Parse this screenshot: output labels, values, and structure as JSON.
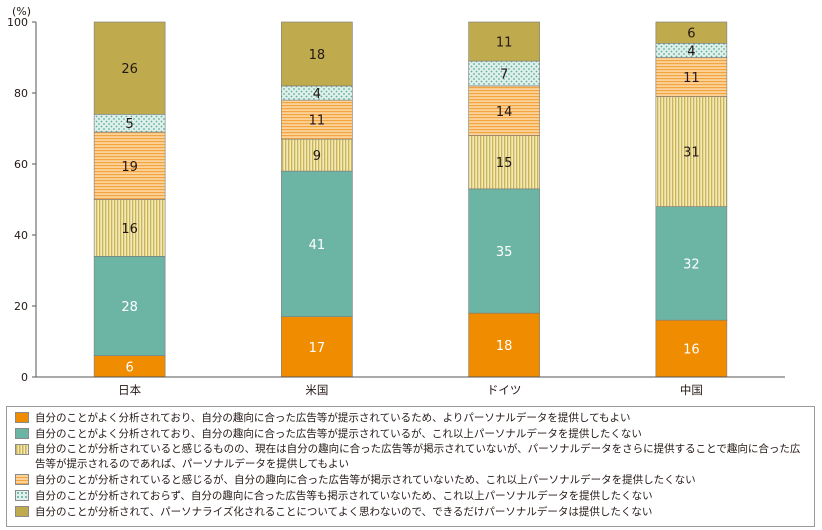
{
  "chart_data": {
    "type": "bar",
    "stacked": true,
    "unit_label": "(%)",
    "categories": [
      "日本",
      "米国",
      "ドイツ",
      "中国"
    ],
    "ylim": [
      0,
      100
    ],
    "yticks": [
      0,
      20,
      40,
      60,
      80,
      100
    ],
    "series": [
      {
        "name": "自分のことがよく分析されており、自分の趣向に合った広告等が提示されているため、よりパーソナルデータを提供してもよい",
        "values": [
          6,
          17,
          18,
          16
        ],
        "color": "#f08c00",
        "pattern": "solid"
      },
      {
        "name": "自分のことがよく分析されており、自分の趣向に合った広告等が提示されているが、これ以上パーソナルデータを提供したくない",
        "values": [
          28,
          41,
          35,
          32
        ],
        "color": "#6cb5a5",
        "pattern": "solid"
      },
      {
        "name": "自分のことが分析されていると感じるものの、現在は自分の趣向に合った広告等が掲示されていないが、パーソナルデータをさらに提供することで趣向に合った広告等が提示されるのであれば、パーソナルデータを提供してもよい",
        "values": [
          16,
          9,
          15,
          31
        ],
        "color": "#d8c87a",
        "pattern": "vertical-lines"
      },
      {
        "name": "自分のことが分析されていると感じるが、自分の趣向に合った広告等が掲示されていないため、これ以上パーソナルデータを提供したくない",
        "values": [
          19,
          11,
          14,
          11
        ],
        "color": "#f7b55c",
        "pattern": "horizontal-lines"
      },
      {
        "name": "自分のことが分析されておらず、自分の趣向に合った広告等も掲示されていないため、これ以上パーソナルデータを提供したくない",
        "values": [
          5,
          4,
          7,
          4
        ],
        "color": "#a9d8cc",
        "pattern": "dots"
      },
      {
        "name": "自分のことが分析されて、パーソナライズ化されることについてよく思わないので、できるだけパーソナルデータは提供したくない",
        "values": [
          26,
          18,
          11,
          6
        ],
        "color": "#bfab4e",
        "pattern": "solid"
      }
    ],
    "grid": false,
    "legend_position": "bottom"
  }
}
